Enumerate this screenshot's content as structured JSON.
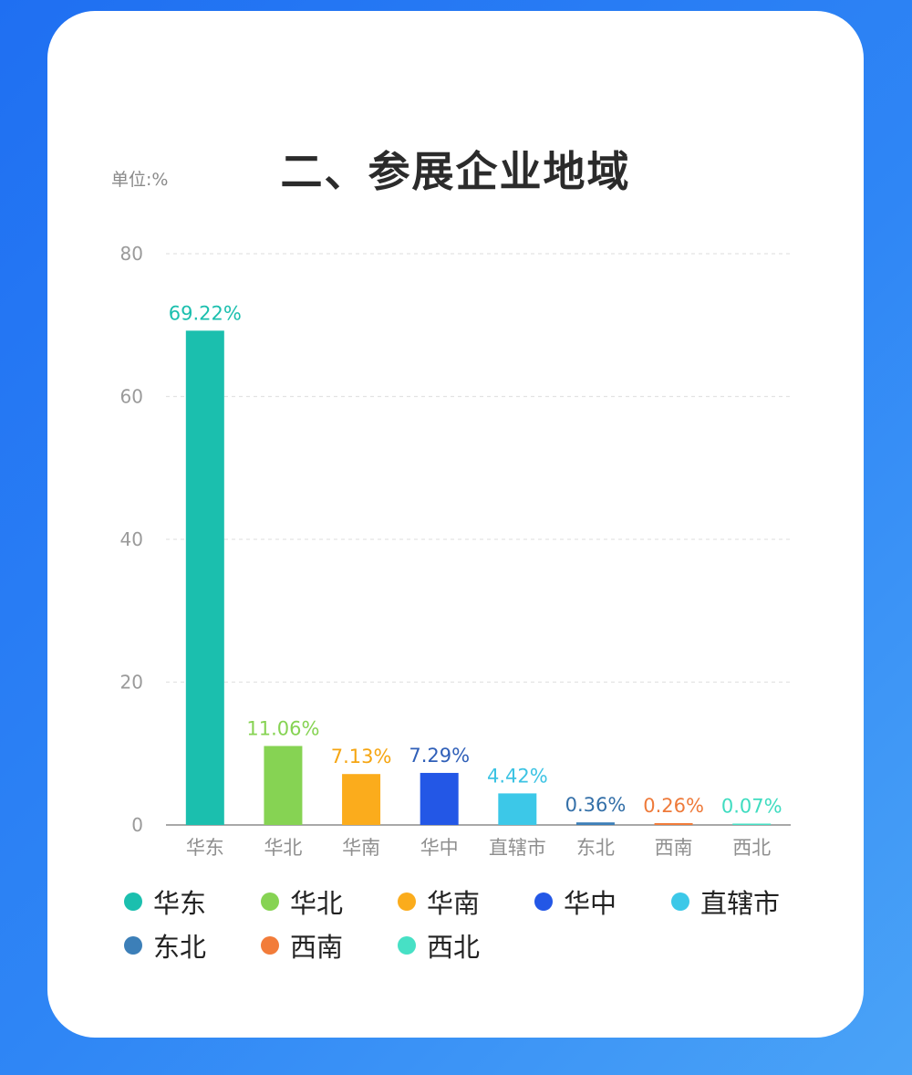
{
  "chart_data": {
    "type": "bar",
    "title": "二、参展企业地域",
    "unit_label": "单位:%",
    "categories": [
      "华东",
      "华北",
      "华南",
      "华中",
      "直辖市",
      "东北",
      "西南",
      "西北"
    ],
    "values": [
      69.22,
      11.06,
      7.13,
      7.29,
      4.42,
      0.36,
      0.26,
      0.07
    ],
    "value_labels": [
      "69.22%",
      "11.06%",
      "7.13%",
      "7.29%",
      "4.42%",
      "0.36%",
      "0.26%",
      "0.07%"
    ],
    "colors": [
      "#1bbfae",
      "#86d353",
      "#fbac1c",
      "#2357e6",
      "#3cc8e8",
      "#3c7fb8",
      "#f27c3a",
      "#47e0c5"
    ],
    "label_colors": [
      "#1bbfae",
      "#86d353",
      "#f5a511",
      "#2f5fb8",
      "#3cc3e3",
      "#336fa8",
      "#ee7a3a",
      "#3fdcc0"
    ],
    "ylim": [
      0,
      80
    ],
    "yticks": [
      "0",
      "20",
      "40",
      "60",
      "80"
    ],
    "grid": true,
    "legend_position": "bottom"
  }
}
